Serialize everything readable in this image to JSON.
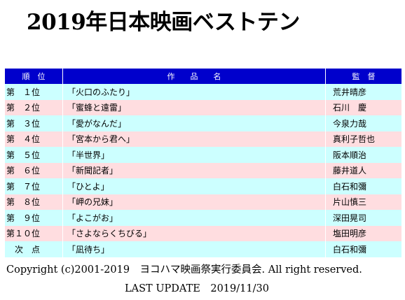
{
  "title": "2019年日本映画ベストテン",
  "table": {
    "headers": {
      "rank": "順　位",
      "film": "作　　品　　名",
      "director": "監　督"
    },
    "header_bg": "#0000cc",
    "row_colors": [
      "#ccffff",
      "#ffdde0"
    ],
    "rows": [
      {
        "rank": "第　１位",
        "film": "「火口のふたり」",
        "director": "荒井晴彦"
      },
      {
        "rank": "第　２位",
        "film": "「蜜蜂と遠雷」",
        "director": "石川　慶"
      },
      {
        "rank": "第　３位",
        "film": "「愛がなんだ」",
        "director": "今泉力哉"
      },
      {
        "rank": "第　４位",
        "film": "「宮本から君へ」",
        "director": "真利子哲也"
      },
      {
        "rank": "第　５位",
        "film": "「半世界」",
        "director": "阪本順治"
      },
      {
        "rank": "第　６位",
        "film": "「新聞記者」",
        "director": "藤井道人"
      },
      {
        "rank": "第　７位",
        "film": "「ひとよ」",
        "director": "白石和彌"
      },
      {
        "rank": "第　８位",
        "film": "「岬の兄妹」",
        "director": "片山慎三"
      },
      {
        "rank": "第　９位",
        "film": "「よこがお」",
        "director": "深田晃司"
      },
      {
        "rank": "第１０位",
        "film": "「さよならくちびる」",
        "director": "塩田明彦"
      },
      {
        "rank": "　次　点",
        "film": "「凪待ち」",
        "director": "白石和彌"
      }
    ]
  },
  "footer": {
    "copyright": "Copyright (c)2001-2019　ヨコハマ映画祭実行委員会. All right reserved.",
    "last_update": "LAST UPDATE　2019/11/30"
  }
}
